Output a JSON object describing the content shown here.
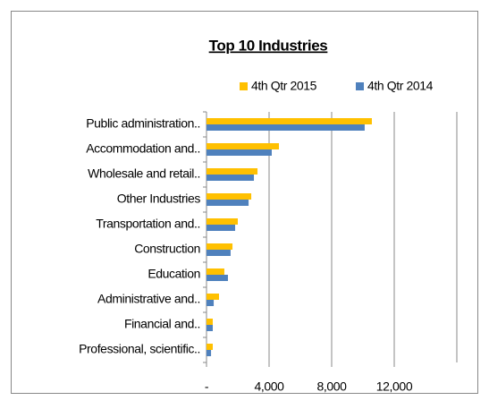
{
  "chart_data": {
    "type": "bar",
    "orientation": "horizontal",
    "title": "Top 10 Industries",
    "categories": [
      "Public administration..",
      "Accommodation and..",
      "Wholesale and retail..",
      "Other Industries",
      "Transportation and..",
      "Construction",
      "Education",
      "Administrative and..",
      "Financial and..",
      "Professional, scientific.."
    ],
    "series": [
      {
        "name": "4th Qtr 2015",
        "color": "#ffc000",
        "values": [
          10570,
          4630,
          3260,
          2860,
          2000,
          1660,
          1140,
          800,
          400,
          400
        ]
      },
      {
        "name": "4th Qtr 2014",
        "color": "#4f81bd",
        "values": [
          10110,
          4170,
          3030,
          2690,
          1830,
          1540,
          1370,
          460,
          400,
          290
        ]
      }
    ],
    "xlim": [
      0,
      16000
    ],
    "xticks": [
      {
        "value": 0,
        "label": "-"
      },
      {
        "value": 4000,
        "label": "4,000"
      },
      {
        "value": 8000,
        "label": "8,000"
      },
      {
        "value": 12000,
        "label": "12,000"
      }
    ],
    "grid": true,
    "legend": "top"
  }
}
